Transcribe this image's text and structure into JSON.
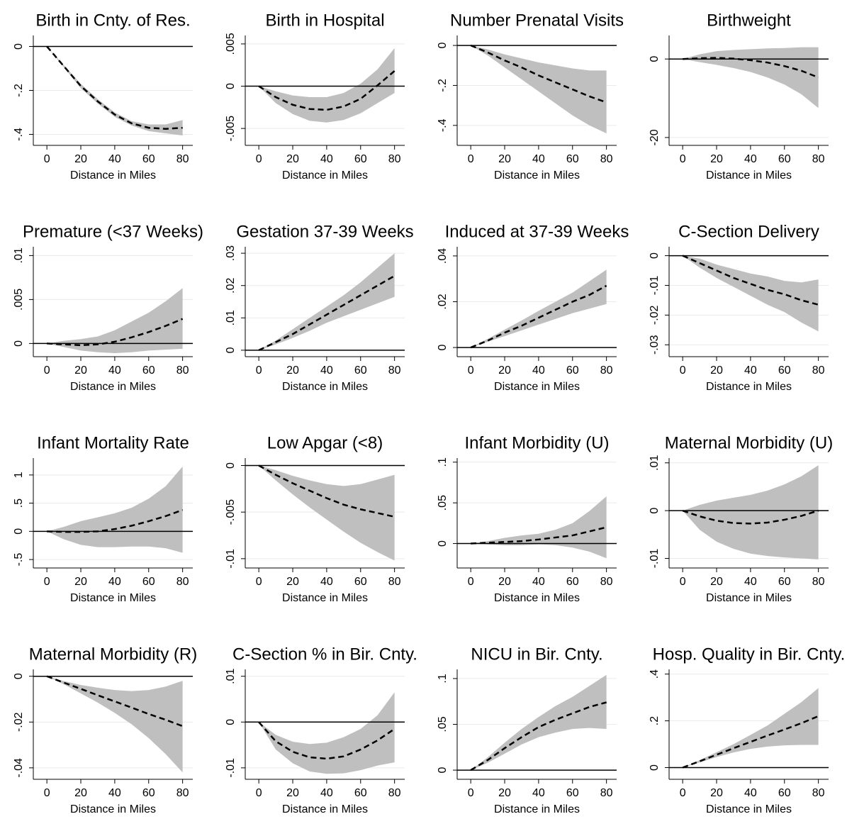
{
  "chart_data": [
    {
      "type": "line",
      "title": "Birth in Cnty. of Res.",
      "xlabel": "Distance in Miles",
      "x": [
        0,
        10,
        20,
        30,
        40,
        50,
        60,
        70,
        80
      ],
      "values": [
        0,
        -0.09,
        -0.18,
        -0.25,
        -0.31,
        -0.35,
        -0.37,
        -0.375,
        -0.37
      ],
      "lower": [
        0,
        -0.095,
        -0.19,
        -0.26,
        -0.32,
        -0.36,
        -0.385,
        -0.395,
        -0.405
      ],
      "upper": [
        0,
        -0.085,
        -0.17,
        -0.24,
        -0.3,
        -0.34,
        -0.355,
        -0.355,
        -0.335
      ],
      "color": "#000000",
      "band_color": "#bfbfbf",
      "hline": 0,
      "grid": true,
      "xlim": [
        -8,
        86
      ],
      "ylim": [
        -0.45,
        0.05
      ],
      "xticks": [
        0,
        20,
        40,
        60,
        80
      ],
      "yticks": [
        0,
        {
          "value": -0.2,
          "label": "-.2"
        },
        {
          "value": -0.4,
          "label": "-.4"
        }
      ]
    },
    {
      "type": "line",
      "title": "Birth in Hospital",
      "xlabel": "Distance in Miles",
      "x": [
        0,
        10,
        20,
        30,
        40,
        50,
        60,
        70,
        80
      ],
      "values": [
        0,
        -0.0013,
        -0.0022,
        -0.0027,
        -0.0028,
        -0.0024,
        -0.0015,
        0.0001,
        0.0018
      ],
      "lower": [
        0,
        -0.002,
        -0.0033,
        -0.0041,
        -0.0043,
        -0.004,
        -0.0032,
        -0.002,
        -0.0008
      ],
      "upper": [
        0,
        -0.0006,
        -0.0011,
        -0.0013,
        -0.0013,
        -0.0008,
        0.0003,
        0.002,
        0.0045
      ],
      "color": "#000000",
      "band_color": "#bfbfbf",
      "hline": 0,
      "grid": true,
      "xlim": [
        -8,
        86
      ],
      "ylim": [
        -0.007,
        0.006
      ],
      "xticks": [
        0,
        20,
        40,
        60,
        80
      ],
      "yticks": [
        {
          "value": 0.005,
          "label": ".005"
        },
        0,
        {
          "value": -0.005,
          "label": "-.005"
        }
      ]
    },
    {
      "type": "line",
      "title": "Number Prenatal Visits",
      "xlabel": "Distance in Miles",
      "x": [
        0,
        10,
        20,
        30,
        40,
        50,
        60,
        70,
        80
      ],
      "values": [
        0,
        -0.035,
        -0.075,
        -0.11,
        -0.15,
        -0.185,
        -0.22,
        -0.255,
        -0.285
      ],
      "lower": [
        0,
        -0.05,
        -0.11,
        -0.17,
        -0.23,
        -0.29,
        -0.35,
        -0.4,
        -0.44
      ],
      "upper": [
        0,
        -0.02,
        -0.045,
        -0.065,
        -0.085,
        -0.1,
        -0.115,
        -0.125,
        -0.125
      ],
      "color": "#000000",
      "band_color": "#bfbfbf",
      "hline": 0,
      "grid": true,
      "xlim": [
        -8,
        86
      ],
      "ylim": [
        -0.5,
        0.05
      ],
      "xticks": [
        0,
        20,
        40,
        60,
        80
      ],
      "yticks": [
        0,
        {
          "value": -0.2,
          "label": "-.2"
        },
        {
          "value": -0.4,
          "label": "-.4"
        }
      ]
    },
    {
      "type": "line",
      "title": "Birthweight",
      "xlabel": "Distance in Miles",
      "x": [
        0,
        10,
        20,
        30,
        40,
        50,
        60,
        70,
        80
      ],
      "values": [
        0,
        0.2,
        0.3,
        0.1,
        -0.3,
        -0.9,
        -1.8,
        -3,
        -4.7
      ],
      "lower": [
        0,
        -0.8,
        -1.5,
        -2.3,
        -3.3,
        -4.7,
        -6.5,
        -9,
        -12.5
      ],
      "upper": [
        0,
        1.2,
        2,
        2.3,
        2.5,
        2.7,
        2.8,
        3,
        3
      ],
      "color": "#000000",
      "band_color": "#bfbfbf",
      "hline": 0,
      "grid": true,
      "xlim": [
        -8,
        86
      ],
      "ylim": [
        -22,
        6
      ],
      "xticks": [
        0,
        20,
        40,
        60,
        80
      ],
      "yticks": [
        0,
        -20
      ]
    },
    {
      "type": "line",
      "title": "Premature (<37 Weeks)",
      "xlabel": "Distance in Miles",
      "x": [
        0,
        10,
        20,
        30,
        40,
        50,
        60,
        70,
        80
      ],
      "values": [
        0,
        -0.0001,
        -0.0002,
        -0.0001,
        0.0002,
        0.0007,
        0.0013,
        0.002,
        0.0028
      ],
      "lower": [
        0,
        -0.0004,
        -0.0008,
        -0.001,
        -0.0011,
        -0.001,
        -0.0008,
        -0.0007,
        -0.0006
      ],
      "upper": [
        0,
        0.0003,
        0.0005,
        0.0008,
        0.0015,
        0.0025,
        0.0035,
        0.0048,
        0.0063
      ],
      "color": "#000000",
      "band_color": "#bfbfbf",
      "hline": 0,
      "grid": true,
      "xlim": [
        -8,
        86
      ],
      "ylim": [
        -0.0015,
        0.011
      ],
      "xticks": [
        0,
        20,
        40,
        60,
        80
      ],
      "yticks": [
        0,
        {
          "value": 0.005,
          "label": ".005"
        },
        {
          "value": 0.01,
          "label": ".01"
        }
      ]
    },
    {
      "type": "line",
      "title": "Gestation 37-39 Weeks",
      "xlabel": "Distance in Miles",
      "x": [
        0,
        10,
        20,
        30,
        40,
        50,
        60,
        70,
        80
      ],
      "values": [
        0,
        0.0025,
        0.005,
        0.008,
        0.011,
        0.014,
        0.017,
        0.02,
        0.023
      ],
      "lower": [
        0,
        0.0018,
        0.0038,
        0.006,
        0.0085,
        0.0105,
        0.0125,
        0.0145,
        0.0165
      ],
      "upper": [
        0,
        0.003,
        0.0065,
        0.01,
        0.0135,
        0.017,
        0.021,
        0.0255,
        0.03
      ],
      "color": "#000000",
      "band_color": "#bfbfbf",
      "hline": 0,
      "grid": true,
      "xlim": [
        -8,
        86
      ],
      "ylim": [
        -0.002,
        0.032
      ],
      "xticks": [
        0,
        20,
        40,
        60,
        80
      ],
      "yticks": [
        0,
        {
          "value": 0.01,
          "label": ".01"
        },
        {
          "value": 0.02,
          "label": ".02"
        },
        {
          "value": 0.03,
          "label": ".03"
        }
      ]
    },
    {
      "type": "line",
      "title": "Induced at 37-39 Weeks",
      "xlabel": "Distance in Miles",
      "x": [
        0,
        10,
        20,
        30,
        40,
        50,
        60,
        70,
        80
      ],
      "values": [
        0,
        0.003,
        0.0065,
        0.0095,
        0.013,
        0.0165,
        0.02,
        0.023,
        0.027
      ],
      "lower": [
        0,
        0.0025,
        0.005,
        0.0075,
        0.01,
        0.0125,
        0.015,
        0.017,
        0.019
      ],
      "upper": [
        0,
        0.0038,
        0.0078,
        0.0118,
        0.016,
        0.02,
        0.024,
        0.029,
        0.034
      ],
      "color": "#000000",
      "band_color": "#bfbfbf",
      "hline": 0,
      "grid": true,
      "xlim": [
        -8,
        86
      ],
      "ylim": [
        -0.004,
        0.044
      ],
      "xticks": [
        0,
        20,
        40,
        60,
        80
      ],
      "yticks": [
        0,
        {
          "value": 0.02,
          "label": ".02"
        },
        {
          "value": 0.04,
          "label": ".04"
        }
      ]
    },
    {
      "type": "line",
      "title": "C-Section Delivery",
      "xlabel": "Distance in Miles",
      "x": [
        0,
        10,
        20,
        30,
        40,
        50,
        60,
        70,
        80
      ],
      "values": [
        0,
        -0.0025,
        -0.005,
        -0.0075,
        -0.0095,
        -0.0115,
        -0.013,
        -0.015,
        -0.0165
      ],
      "lower": [
        0,
        -0.004,
        -0.0075,
        -0.0105,
        -0.0135,
        -0.0165,
        -0.019,
        -0.0225,
        -0.0255
      ],
      "upper": [
        0,
        -0.001,
        -0.003,
        -0.0045,
        -0.006,
        -0.007,
        -0.0085,
        -0.009,
        -0.008
      ],
      "color": "#000000",
      "band_color": "#bfbfbf",
      "hline": 0,
      "grid": true,
      "xlim": [
        -8,
        86
      ],
      "ylim": [
        -0.034,
        0.003
      ],
      "xticks": [
        0,
        20,
        40,
        60,
        80
      ],
      "yticks": [
        0,
        {
          "value": -0.01,
          "label": "-.01"
        },
        {
          "value": -0.02,
          "label": "-.02"
        },
        {
          "value": -0.03,
          "label": "-.03"
        }
      ]
    },
    {
      "type": "line",
      "title": "Infant Mortality Rate",
      "xlabel": "Distance in Miles",
      "x": [
        0,
        10,
        20,
        30,
        40,
        50,
        60,
        70,
        80
      ],
      "values": [
        0,
        -0.01,
        -0.01,
        0,
        0.04,
        0.1,
        0.18,
        0.27,
        0.38
      ],
      "lower": [
        0,
        -0.14,
        -0.24,
        -0.28,
        -0.28,
        -0.27,
        -0.27,
        -0.3,
        -0.38
      ],
      "upper": [
        0,
        0.08,
        0.18,
        0.25,
        0.32,
        0.42,
        0.58,
        0.8,
        1.15
      ],
      "color": "#000000",
      "band_color": "#bfbfbf",
      "hline": 0,
      "grid": true,
      "xlim": [
        -8,
        86
      ],
      "ylim": [
        -0.65,
        1.3
      ],
      "xticks": [
        0,
        20,
        40,
        60,
        80
      ],
      "yticks": [
        {
          "value": -0.5,
          "label": "-.5"
        },
        0,
        {
          "value": 0.5,
          "label": ".5"
        },
        1
      ]
    },
    {
      "type": "line",
      "title": "Low Apgar (<8)",
      "xlabel": "Distance in Miles",
      "x": [
        0,
        10,
        20,
        30,
        40,
        50,
        60,
        70,
        80
      ],
      "values": [
        0,
        -0.001,
        -0.0019,
        -0.0027,
        -0.0035,
        -0.0042,
        -0.0047,
        -0.0051,
        -0.0055
      ],
      "lower": [
        0,
        -0.0016,
        -0.0031,
        -0.0045,
        -0.0058,
        -0.0071,
        -0.0083,
        -0.0093,
        -0.0102
      ],
      "upper": [
        0,
        -0.0005,
        -0.0011,
        -0.0016,
        -0.002,
        -0.0022,
        -0.002,
        -0.0015,
        -0.001
      ],
      "color": "#000000",
      "band_color": "#bfbfbf",
      "hline": 0,
      "grid": true,
      "xlim": [
        -8,
        86
      ],
      "ylim": [
        -0.011,
        0.0008
      ],
      "xticks": [
        0,
        20,
        40,
        60,
        80
      ],
      "yticks": [
        0,
        {
          "value": -0.005,
          "label": "-.005"
        },
        {
          "value": -0.01,
          "label": "-.01"
        }
      ]
    },
    {
      "type": "line",
      "title": "Infant Morbidity (U)",
      "xlabel": "Distance in Miles",
      "x": [
        0,
        10,
        20,
        30,
        40,
        50,
        60,
        70,
        80
      ],
      "values": [
        0,
        0.001,
        0.002,
        0.003,
        0.005,
        0.0075,
        0.01,
        0.015,
        0.02
      ],
      "lower": [
        0,
        -0.001,
        -0.002,
        -0.002,
        -0.001,
        -0.002,
        -0.005,
        -0.01,
        -0.018
      ],
      "upper": [
        0,
        0.003,
        0.007,
        0.01,
        0.012,
        0.017,
        0.025,
        0.04,
        0.058
      ],
      "color": "#000000",
      "band_color": "#bfbfbf",
      "hline": 0,
      "grid": true,
      "xlim": [
        -8,
        86
      ],
      "ylim": [
        -0.03,
        0.105
      ],
      "xticks": [
        0,
        20,
        40,
        60,
        80
      ],
      "yticks": [
        0,
        {
          "value": 0.05,
          "label": ".05"
        },
        {
          "value": 0.1,
          "label": ".1"
        }
      ]
    },
    {
      "type": "line",
      "title": "Maternal Morbidity (U)",
      "xlabel": "Distance in Miles",
      "x": [
        0,
        10,
        20,
        30,
        40,
        50,
        60,
        70,
        80
      ],
      "values": [
        0,
        -0.0012,
        -0.0021,
        -0.0026,
        -0.0027,
        -0.0025,
        -0.0019,
        -0.0011,
        0
      ],
      "lower": [
        0,
        -0.004,
        -0.0065,
        -0.008,
        -0.009,
        -0.0095,
        -0.0098,
        -0.01,
        -0.0102
      ],
      "upper": [
        0,
        0.0012,
        0.0021,
        0.0027,
        0.0033,
        0.0042,
        0.0055,
        0.0072,
        0.0095
      ],
      "color": "#000000",
      "band_color": "#bfbfbf",
      "hline": 0,
      "grid": true,
      "xlim": [
        -8,
        86
      ],
      "ylim": [
        -0.012,
        0.011
      ],
      "xticks": [
        0,
        20,
        40,
        60,
        80
      ],
      "yticks": [
        {
          "value": -0.01,
          "label": "-.01"
        },
        0,
        {
          "value": 0.01,
          "label": ".01"
        }
      ]
    },
    {
      "type": "line",
      "title": "Maternal Morbidity (R)",
      "xlabel": "Distance in Miles",
      "x": [
        0,
        10,
        20,
        30,
        40,
        50,
        60,
        70,
        80
      ],
      "values": [
        0,
        -0.0028,
        -0.0055,
        -0.0083,
        -0.011,
        -0.0137,
        -0.0165,
        -0.019,
        -0.0218
      ],
      "lower": [
        0,
        -0.0035,
        -0.0075,
        -0.0115,
        -0.016,
        -0.021,
        -0.027,
        -0.034,
        -0.042
      ],
      "upper": [
        0,
        -0.0021,
        -0.0038,
        -0.005,
        -0.006,
        -0.0065,
        -0.006,
        -0.0045,
        -0.002
      ],
      "color": "#000000",
      "band_color": "#bfbfbf",
      "hline": 0,
      "grid": true,
      "xlim": [
        -8,
        86
      ],
      "ylim": [
        -0.045,
        0.003
      ],
      "xticks": [
        0,
        20,
        40,
        60,
        80
      ],
      "yticks": [
        0,
        {
          "value": -0.02,
          "label": "-.02"
        },
        {
          "value": -0.04,
          "label": "-.04"
        }
      ]
    },
    {
      "type": "line",
      "title": "C-Section % in Bir. Cnty.",
      "xlabel": "Distance in Miles",
      "x": [
        0,
        10,
        20,
        30,
        40,
        50,
        60,
        70,
        80
      ],
      "values": [
        0,
        -0.0042,
        -0.0065,
        -0.0077,
        -0.008,
        -0.0075,
        -0.006,
        -0.004,
        -0.0015
      ],
      "lower": [
        0,
        -0.006,
        -0.009,
        -0.0108,
        -0.0113,
        -0.0112,
        -0.0105,
        -0.0095,
        -0.0088
      ],
      "upper": [
        0,
        -0.0028,
        -0.0043,
        -0.0048,
        -0.0045,
        -0.0033,
        -0.0015,
        0.0015,
        0.0065
      ],
      "color": "#000000",
      "band_color": "#bfbfbf",
      "hline": 0,
      "grid": true,
      "xlim": [
        -8,
        86
      ],
      "ylim": [
        -0.0125,
        0.0115
      ],
      "xticks": [
        0,
        20,
        40,
        60,
        80
      ],
      "yticks": [
        {
          "value": -0.01,
          "label": "-.01"
        },
        0,
        {
          "value": 0.01,
          "label": ".01"
        }
      ]
    },
    {
      "type": "line",
      "title": "NICU in Bir. Cnty.",
      "xlabel": "Distance in Miles",
      "x": [
        0,
        10,
        20,
        30,
        40,
        50,
        60,
        70,
        80
      ],
      "values": [
        0,
        0.011,
        0.024,
        0.036,
        0.047,
        0.055,
        0.062,
        0.069,
        0.074
      ],
      "lower": [
        0,
        0.008,
        0.018,
        0.028,
        0.036,
        0.041,
        0.045,
        0.046,
        0.045
      ],
      "upper": [
        0,
        0.014,
        0.03,
        0.045,
        0.058,
        0.07,
        0.08,
        0.092,
        0.104
      ],
      "color": "#000000",
      "band_color": "#bfbfbf",
      "hline": 0,
      "grid": true,
      "xlim": [
        -8,
        86
      ],
      "ylim": [
        -0.01,
        0.11
      ],
      "xticks": [
        0,
        20,
        40,
        60,
        80
      ],
      "yticks": [
        0,
        {
          "value": 0.05,
          "label": ".05"
        },
        {
          "value": 0.1,
          "label": ".1"
        }
      ]
    },
    {
      "type": "line",
      "title": "Hosp. Quality in Bir. Cnty.",
      "xlabel": "Distance in Miles",
      "x": [
        0,
        10,
        20,
        30,
        40,
        50,
        60,
        70,
        80
      ],
      "values": [
        0,
        0.027,
        0.055,
        0.083,
        0.11,
        0.137,
        0.163,
        0.19,
        0.22
      ],
      "lower": [
        0,
        0.022,
        0.045,
        0.065,
        0.08,
        0.09,
        0.095,
        0.097,
        0.097
      ],
      "upper": [
        0,
        0.032,
        0.066,
        0.1,
        0.14,
        0.18,
        0.23,
        0.28,
        0.34
      ],
      "color": "#000000",
      "band_color": "#bfbfbf",
      "hline": 0,
      "grid": true,
      "xlim": [
        -8,
        86
      ],
      "ylim": [
        -0.05,
        0.42
      ],
      "xticks": [
        0,
        20,
        40,
        60,
        80
      ],
      "yticks": [
        0,
        {
          "value": 0.2,
          "label": ".2"
        },
        {
          "value": 0.4,
          "label": ".4"
        }
      ]
    }
  ]
}
